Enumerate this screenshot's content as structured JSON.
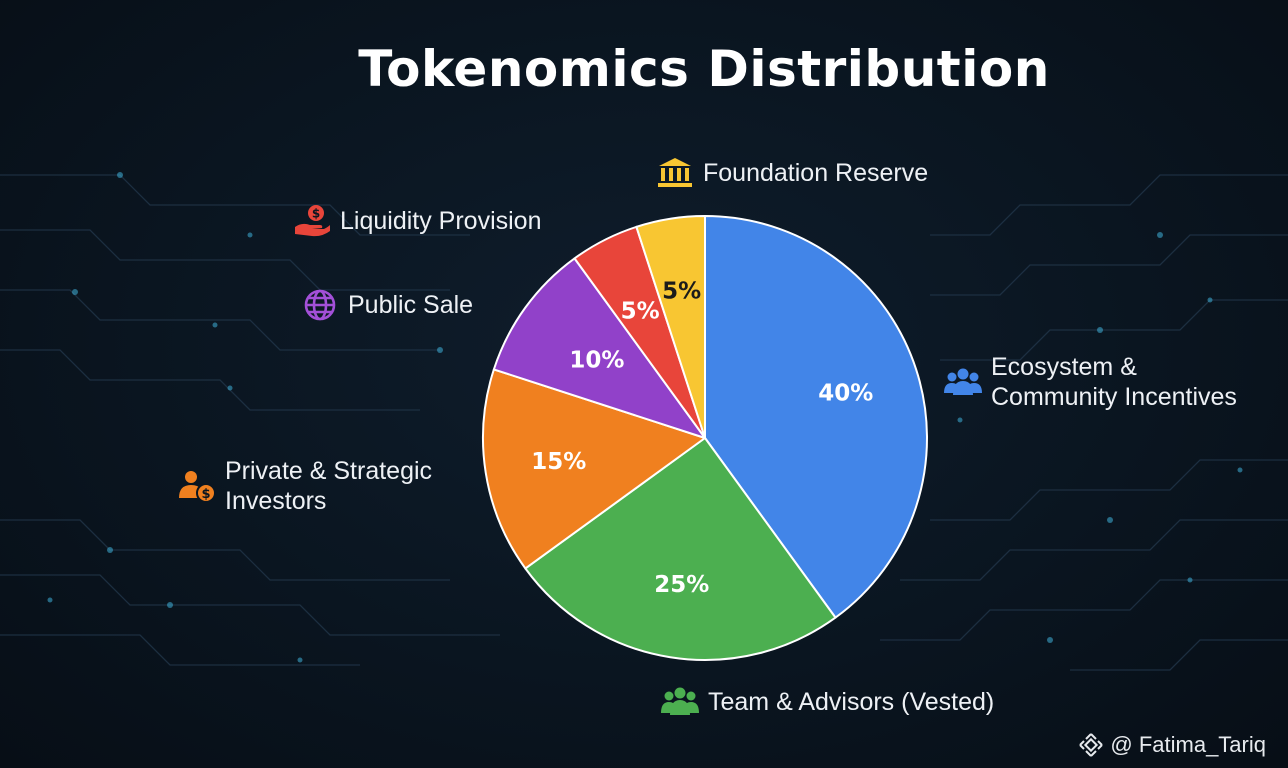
{
  "chart_data": {
    "type": "pie",
    "title": "Tokenomics Distribution",
    "slices": [
      {
        "label": "Ecosystem & Community Incentives",
        "label_lines": [
          "Ecosystem &",
          "Community Incentives"
        ],
        "value": 40,
        "text": "40%",
        "color": "#4285e8",
        "label_color": "#ffffff",
        "icon": "community-icon"
      },
      {
        "label": "Team & Advisors (Vested)",
        "label_lines": [
          "Team & Advisors (Vested)"
        ],
        "value": 25,
        "text": "25%",
        "color": "#4caf50",
        "label_color": "#ffffff",
        "icon": "team-icon"
      },
      {
        "label": "Private & Strategic Investors",
        "label_lines": [
          "Private & Strategic",
          "Investors"
        ],
        "value": 15,
        "text": "15%",
        "color": "#f0801f",
        "label_color": "#ffffff",
        "icon": "investor-icon"
      },
      {
        "label": "Public Sale",
        "label_lines": [
          "Public Sale"
        ],
        "value": 10,
        "text": "10%",
        "color": "#9141c9",
        "label_color": "#ffffff",
        "icon": "globe-icon"
      },
      {
        "label": "Liquidity Provision",
        "label_lines": [
          "Liquidity Provision"
        ],
        "value": 5,
        "text": "5%",
        "color": "#e8453a",
        "label_color": "#ffffff",
        "icon": "money-hand-icon"
      },
      {
        "label": "Foundation Reserve",
        "label_lines": [
          "Foundation Reserve"
        ],
        "value": 5,
        "text": "5%",
        "color": "#f8c632",
        "label_color": "#1b1b1b",
        "icon": "bank-icon"
      }
    ],
    "start_angle_deg": 0,
    "direction": "clockwise",
    "legend_placement": "around-pie"
  },
  "watermark": {
    "text": "@ Fatima_Tariq",
    "icon": "binance-icon"
  },
  "colors": {
    "background": "#0a1520",
    "circuit": "#2a3e52",
    "slice_border": "#ffffff"
  }
}
